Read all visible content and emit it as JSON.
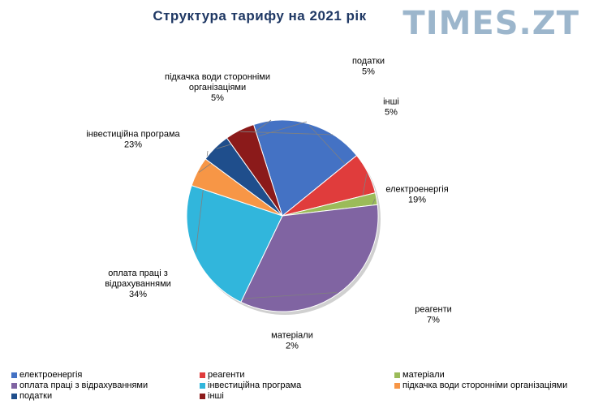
{
  "watermark": "TIMES.ZT",
  "chart_data": {
    "type": "pie",
    "title": "Структура  тарифу  на 2021 рік",
    "slices": [
      {
        "label": "електроенергія",
        "legend": "електроенергія",
        "value": 19,
        "value_label": "19%",
        "color": "#4472c4"
      },
      {
        "label": "реагенти",
        "legend": "реагенти",
        "value": 7,
        "value_label": "7%",
        "color": "#e03c3c"
      },
      {
        "label": "матеріали",
        "legend": "матеріали",
        "value": 2,
        "value_label": "2%",
        "color": "#9bbb59"
      },
      {
        "label_lines": [
          "оплата праці з",
          "відрахуваннями"
        ],
        "legend": "оплата праці з відрахуваннями",
        "value": 34,
        "value_label": "34%",
        "color": "#8064a2"
      },
      {
        "label": "інвестиційна програма",
        "legend": "інвестиційна програма",
        "value": 23,
        "value_label": "23%",
        "color": "#31b6dc"
      },
      {
        "label_lines": [
          "підкачка води сторонніми",
          "організаціями"
        ],
        "legend": "підкачка води сторонніми організаціями",
        "value": 5,
        "value_label": "5%",
        "color": "#f79646"
      },
      {
        "label": "податки",
        "legend": "податки",
        "value": 5,
        "value_label": "5%",
        "color": "#1f4e8c"
      },
      {
        "label": "інші",
        "legend": "інші",
        "value": 5,
        "value_label": "5%",
        "color": "#8b1a1a"
      }
    ],
    "legend_position": "bottom"
  }
}
